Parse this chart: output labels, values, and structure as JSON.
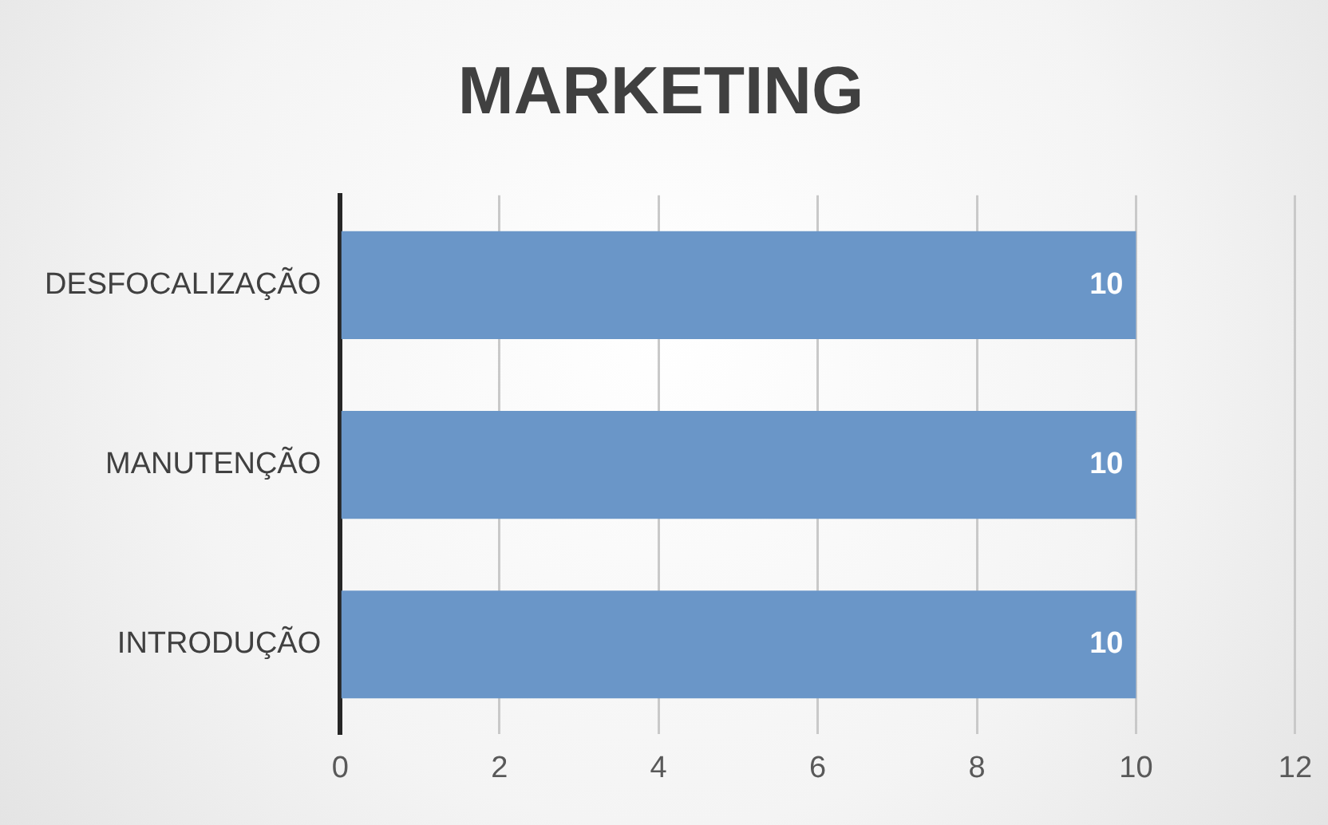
{
  "chart_data": {
    "type": "bar",
    "title": "MARKETING",
    "orientation": "horizontal",
    "categories": [
      "DESFOCALIZAÇÃO",
      "MANUTENÇÃO",
      "INTRODUÇÃO"
    ],
    "values": [
      10,
      10,
      10
    ],
    "color": "#6a96c8",
    "xlim": [
      0,
      12
    ],
    "xticks": [
      0,
      2,
      4,
      6,
      8,
      10,
      12
    ],
    "grid": "x",
    "data_labels": true,
    "legend": false
  }
}
